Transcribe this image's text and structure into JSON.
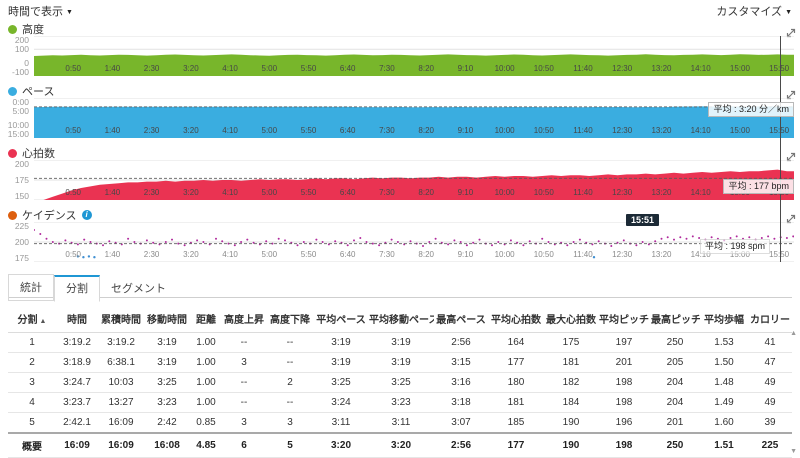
{
  "toolbar": {
    "time_display": "時間で表示",
    "customize": "カスタマイズ"
  },
  "icons": {
    "dropdown_arrow": "▼",
    "sort_asc": "▲",
    "scroll_up": "▲",
    "scroll_down": "▼",
    "info": "i"
  },
  "cursor": {
    "time_label": "15:51",
    "time_sec": 951
  },
  "chart_data": {
    "x_axis": {
      "max_sec": 969,
      "ticks": [
        "0:50",
        "1:40",
        "2:30",
        "3:20",
        "4:10",
        "5:00",
        "5:50",
        "6:40",
        "7:30",
        "8:20",
        "9:10",
        "10:00",
        "10:50",
        "11:40",
        "12:30",
        "13:20",
        "14:10",
        "15:00",
        "15:50"
      ]
    },
    "charts": [
      {
        "id": "elevation",
        "type": "area",
        "label": "高度",
        "legend_color": "#78b62b",
        "series_color": "#78b62b",
        "ylim": [
          -100,
          200
        ],
        "inverted": false,
        "yticks": [
          {
            "v": 200,
            "label": "200"
          },
          {
            "v": 100,
            "label": "100"
          },
          {
            "v": 0,
            "label": "0"
          },
          {
            "v": -100,
            "label": "-100"
          }
        ],
        "sample_dt_sec": 12,
        "values": [
          50,
          53,
          56,
          54,
          57,
          59,
          56,
          54,
          57,
          60,
          58,
          55,
          53,
          56,
          59,
          61,
          58,
          56,
          54,
          57,
          60,
          62,
          59,
          56,
          54,
          52,
          55,
          58,
          60,
          57,
          55,
          53,
          56,
          59,
          61,
          58,
          55,
          57,
          60,
          58,
          56,
          54,
          57,
          59,
          62,
          59,
          57,
          55,
          53,
          56,
          58,
          61,
          59,
          56,
          54,
          57,
          59,
          62,
          60,
          57,
          55,
          53,
          56,
          58,
          60,
          63,
          60,
          57,
          55,
          58,
          60,
          62,
          59,
          57,
          60,
          63,
          61,
          58,
          60,
          62,
          60
        ],
        "avg_value": null,
        "avg_label": null
      },
      {
        "id": "pace",
        "type": "area",
        "label": "ペース",
        "legend_color": "#3aade0",
        "series_color": "#3aade0",
        "ylim": [
          0,
          900
        ],
        "inverted": true,
        "yticks": [
          {
            "v": 0,
            "label": "0:00"
          },
          {
            "v": 300,
            "label": "5:00"
          },
          {
            "v": 600,
            "label": "10:00"
          },
          {
            "v": 900,
            "label": "15:00"
          }
        ],
        "sample_dt_sec": 12,
        "values": [
          210,
          203,
          199,
          197,
          200,
          198,
          199,
          201,
          198,
          197,
          199,
          200,
          198,
          199,
          200,
          198,
          199,
          198,
          200,
          199,
          197,
          199,
          201,
          198,
          199,
          200,
          198,
          197,
          199,
          200,
          198,
          199,
          201,
          199,
          203,
          206,
          204,
          207,
          205,
          203,
          206,
          208,
          205,
          204,
          206,
          203,
          205,
          207,
          204,
          206,
          205,
          202,
          205,
          203,
          206,
          204,
          202,
          205,
          207,
          204,
          203,
          205,
          202,
          204,
          206,
          203,
          205,
          204,
          196,
          193,
          191,
          189,
          192,
          190,
          188,
          191,
          193,
          190,
          188,
          191,
          189
        ],
        "avg_value": 200,
        "avg_label": "平均 : 3:20 分／km"
      },
      {
        "id": "heart-rate",
        "type": "area",
        "label": "心拍数",
        "legend_color": "#ea3352",
        "series_color": "#ea3352",
        "ylim": [
          150,
          200
        ],
        "inverted": false,
        "yticks": [
          {
            "v": 200,
            "label": "200"
          },
          {
            "v": 175,
            "label": "175"
          },
          {
            "v": 150,
            "label": "150"
          }
        ],
        "sample_dt_sec": 12,
        "values": [
          148,
          150,
          154,
          158,
          162,
          165,
          167,
          169,
          170,
          171,
          172,
          172,
          173,
          173,
          174,
          173,
          174,
          174,
          175,
          174,
          175,
          175,
          174,
          175,
          176,
          175,
          176,
          176,
          175,
          176,
          177,
          176,
          177,
          177,
          176,
          177,
          178,
          177,
          178,
          178,
          177,
          178,
          178,
          179,
          178,
          179,
          179,
          178,
          179,
          180,
          179,
          180,
          180,
          179,
          180,
          181,
          180,
          181,
          181,
          180,
          181,
          182,
          181,
          182,
          182,
          183,
          182,
          183,
          184,
          183,
          184,
          185,
          184,
          185,
          186,
          185,
          186,
          186,
          187,
          188,
          186
        ],
        "avg_value": 177,
        "avg_label": "平均 : 177 bpm"
      },
      {
        "id": "cadence",
        "type": "scatter",
        "label": "ケイデンス",
        "legend_color": "#dd5f0e",
        "series_color": "#b02a9c",
        "secondary_color": "#3f8fd2",
        "has_info_icon": true,
        "ylim": [
          175,
          225
        ],
        "inverted": false,
        "yticks": [
          {
            "v": 225,
            "label": "225"
          },
          {
            "v": 200,
            "label": "200"
          },
          {
            "v": 175,
            "label": "175"
          }
        ],
        "sample_dt_sec": 8,
        "values": [
          215,
          210,
          204,
          200,
          198,
          202,
          199,
          197,
          203,
          200,
          198,
          196,
          201,
          199,
          197,
          204,
          200,
          198,
          202,
          199,
          197,
          200,
          203,
          198,
          196,
          199,
          202,
          200,
          197,
          204,
          201,
          198,
          196,
          200,
          203,
          199,
          197,
          201,
          198,
          204,
          202,
          199,
          196,
          200,
          198,
          203,
          200,
          197,
          201,
          199,
          196,
          202,
          205,
          200,
          198,
          196,
          199,
          203,
          200,
          197,
          201,
          198,
          195,
          200,
          204,
          199,
          197,
          202,
          200,
          196,
          199,
          203,
          198,
          196,
          200,
          197,
          202,
          199,
          196,
          201,
          198,
          204,
          200,
          197,
          199,
          196,
          200,
          203,
          199,
          197,
          201,
          198,
          195,
          199,
          202,
          198,
          196,
          200,
          197,
          201,
          204,
          206,
          203,
          206,
          204,
          207,
          205,
          203,
          206,
          204,
          202,
          205,
          207,
          204,
          206,
          203,
          205,
          207,
          204,
          206,
          205,
          207
        ],
        "secondary_points": [
          [
            56,
            182
          ],
          [
            63,
            181
          ],
          [
            70,
            182
          ],
          [
            77,
            181
          ],
          [
            714,
            181
          ]
        ],
        "avg_value": 198,
        "avg_label": "平均 : 198 spm",
        "show_cursor_tooltip": true
      }
    ]
  },
  "tabs": [
    {
      "id": "stats",
      "label": "統計",
      "active": false,
      "boxed": true
    },
    {
      "id": "splits",
      "label": "分割",
      "active": true,
      "boxed": false
    },
    {
      "id": "segments",
      "label": "セグメント",
      "active": false,
      "boxed": false
    }
  ],
  "table": {
    "column_ids": [
      "lap",
      "time",
      "cumulative-time",
      "moving-time",
      "distance",
      "elev-gain",
      "elev-loss",
      "avg-pace",
      "avg-moving-pace",
      "best-pace",
      "avg-hr",
      "max-hr",
      "avg-cadence",
      "max-cadence",
      "avg-stride",
      "calories"
    ],
    "columns": [
      "分割",
      "時間",
      "累積時間",
      "移動時間",
      "距離",
      "高度上昇",
      "高度下降",
      "平均ペース",
      "平均移動ペース",
      "最高ペース",
      "平均心拍数",
      "最大心拍数",
      "平均ピッチ",
      "最高ピッチ",
      "平均歩幅",
      "カロリー"
    ],
    "rows": [
      [
        "1",
        "3:19.2",
        "3:19.2",
        "3:19",
        "1.00",
        "--",
        "--",
        "3:19",
        "3:19",
        "2:56",
        "164",
        "175",
        "197",
        "250",
        "1.53",
        "41"
      ],
      [
        "2",
        "3:18.9",
        "6:38.1",
        "3:19",
        "1.00",
        "3",
        "--",
        "3:19",
        "3:19",
        "3:15",
        "177",
        "181",
        "201",
        "205",
        "1.50",
        "47"
      ],
      [
        "3",
        "3:24.7",
        "10:03",
        "3:25",
        "1.00",
        "--",
        "2",
        "3:25",
        "3:25",
        "3:16",
        "180",
        "182",
        "198",
        "204",
        "1.48",
        "49"
      ],
      [
        "4",
        "3:23.7",
        "13:27",
        "3:23",
        "1.00",
        "--",
        "--",
        "3:24",
        "3:23",
        "3:18",
        "181",
        "184",
        "198",
        "204",
        "1.49",
        "49"
      ],
      [
        "5",
        "2:42.1",
        "16:09",
        "2:42",
        "0.85",
        "3",
        "3",
        "3:11",
        "3:11",
        "3:07",
        "185",
        "190",
        "196",
        "201",
        "1.60",
        "39"
      ]
    ],
    "summary": [
      "概要",
      "16:09",
      "16:09",
      "16:08",
      "4.85",
      "6",
      "5",
      "3:20",
      "3:20",
      "2:56",
      "177",
      "190",
      "198",
      "250",
      "1.51",
      "225"
    ]
  }
}
